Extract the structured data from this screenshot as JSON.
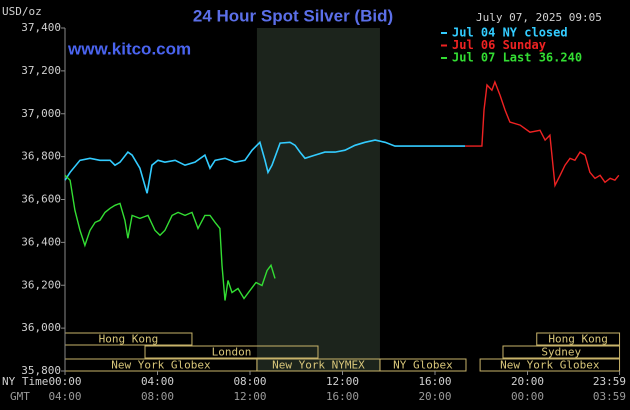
{
  "chart_data": {
    "type": "line",
    "title": "24 Hour Spot Silver (Bid)",
    "y_label": "USD/oz",
    "timestamp": "July 07, 2025 09:05",
    "source": "www.kitco.com",
    "x_label": "NY Time",
    "x2_label": "GMT",
    "xlim": [
      0,
      24
    ],
    "xticks": [
      {
        "value": 0,
        "label": "00:00"
      },
      {
        "value": 4,
        "label": "04:00"
      },
      {
        "value": 8,
        "label": "08:00"
      },
      {
        "value": 12,
        "label": "12:00"
      },
      {
        "value": 16,
        "label": "16:00"
      },
      {
        "value": 20,
        "label": "20:00"
      },
      {
        "value": 23.98,
        "label": "23:59"
      }
    ],
    "x2_tick_labels": [
      "04:00",
      "08:00",
      "12:00",
      "16:00",
      "20:00",
      "00:00",
      "03:59"
    ],
    "ylim": [
      35800,
      37400
    ],
    "yticks": [
      {
        "value": 35800,
        "label": "35,800"
      },
      {
        "value": 36000,
        "label": "36,000"
      },
      {
        "value": 36200,
        "label": "36,200"
      },
      {
        "value": 36400,
        "label": "36,400"
      },
      {
        "value": 36600,
        "label": "36,600"
      },
      {
        "value": 36800,
        "label": "36,800"
      },
      {
        "value": 37000,
        "label": "37,000"
      },
      {
        "value": 37200,
        "label": "37,200"
      },
      {
        "value": 37400,
        "label": "37,400"
      }
    ],
    "series": [
      {
        "name": "Jul 04 NY closed",
        "color": "#33ccff",
        "x": [
          0,
          0.22,
          0.65,
          1.08,
          1.51,
          1.95,
          2.16,
          2.38,
          2.72,
          2.9,
          3.24,
          3.55,
          3.76,
          4.02,
          4.32,
          4.76,
          5.19,
          5.62,
          6.05,
          6.27,
          6.49,
          6.92,
          7.35,
          7.78,
          8.09,
          8.43,
          8.65,
          8.78,
          8.95,
          9.3,
          9.73,
          9.95,
          10.16,
          10.38,
          10.81,
          11.24,
          11.68,
          12.11,
          12.54,
          12.97,
          13.41,
          13.84,
          14.27,
          17.3
        ],
        "values": [
          36690,
          36727,
          36783,
          36792,
          36783,
          36783,
          36760,
          36774,
          36821,
          36807,
          36746,
          36629,
          36760,
          36783,
          36774,
          36783,
          36760,
          36774,
          36807,
          36746,
          36783,
          36792,
          36774,
          36783,
          36830,
          36867,
          36783,
          36727,
          36760,
          36863,
          36867,
          36853,
          36821,
          36792,
          36807,
          36821,
          36821,
          36830,
          36853,
          36867,
          36877,
          36867,
          36849,
          36849
        ]
      },
      {
        "name": "Jul 06 Sunday",
        "color": "#ee2222",
        "x": [
          17.3,
          18.03,
          18.12,
          18.25,
          18.46,
          18.59,
          18.81,
          19.03,
          19.24,
          19.68,
          20.11,
          20.54,
          20.76,
          20.97,
          21.19,
          21.41,
          21.62,
          21.84,
          22.05,
          22.27,
          22.49,
          22.7,
          22.92,
          23.14,
          23.35,
          23.57,
          23.78,
          23.95
        ],
        "values": [
          36849,
          36849,
          37017,
          37134,
          37110,
          37148,
          37087,
          37017,
          36961,
          36947,
          36914,
          36923,
          36877,
          36900,
          36666,
          36713,
          36760,
          36792,
          36783,
          36821,
          36807,
          36727,
          36699,
          36713,
          36680,
          36699,
          36690,
          36713
        ]
      },
      {
        "name": "Jul 07 Last 36.240",
        "color": "#33dd33",
        "x": [
          0,
          0.22,
          0.43,
          0.65,
          0.86,
          1.08,
          1.3,
          1.51,
          1.73,
          1.95,
          2.16,
          2.38,
          2.59,
          2.72,
          2.9,
          3.24,
          3.59,
          3.89,
          4.11,
          4.32,
          4.63,
          4.89,
          5.19,
          5.49,
          5.75,
          6.05,
          6.27,
          6.49,
          6.7,
          6.79,
          6.92,
          7.05,
          7.22,
          7.48,
          7.74,
          8.0,
          8.26,
          8.52,
          8.74,
          8.91,
          9.08
        ],
        "values": [
          36713,
          36690,
          36550,
          36456,
          36386,
          36456,
          36493,
          36503,
          36540,
          36559,
          36573,
          36582,
          36503,
          36419,
          36526,
          36512,
          36526,
          36456,
          36433,
          36456,
          36526,
          36540,
          36526,
          36540,
          36465,
          36526,
          36526,
          36493,
          36465,
          36293,
          36129,
          36222,
          36166,
          36185,
          36138,
          36176,
          36213,
          36199,
          36269,
          36293,
          36232
        ]
      }
    ],
    "session_rows": [
      [
        {
          "label": "Hong Kong",
          "start": 0,
          "end": 5.49
        },
        {
          "label": "Hong Kong",
          "start": 20.4,
          "end": 23.98
        }
      ],
      [
        {
          "label": "London",
          "start": 3.46,
          "end": 10.94
        },
        {
          "label": "Sydney",
          "start": 18.94,
          "end": 23.98
        }
      ],
      [
        {
          "label": "New York Globex",
          "start": 0,
          "end": 8.3
        },
        {
          "label": "New York NYMEX",
          "start": 8.3,
          "end": 13.62,
          "highlight": true
        },
        {
          "label": "NY Globex",
          "start": 13.62,
          "end": 17.34
        },
        {
          "label": "New York Globex",
          "start": 17.95,
          "end": 23.98
        }
      ]
    ]
  }
}
